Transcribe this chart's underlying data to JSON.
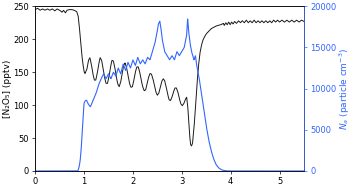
{
  "ylabel_left": "[N₂O₅] (pptv)",
  "ylabel_right": "$N_a$ (particle cm$^{-3}$)",
  "xlim": [
    0,
    5.5
  ],
  "ylim_left": [
    0,
    250
  ],
  "ylim_right": [
    0,
    20000
  ],
  "yticks_left": [
    0,
    50,
    100,
    150,
    200,
    250
  ],
  "yticks_right": [
    0,
    5000,
    10000,
    15000,
    20000
  ],
  "xticks": [
    0,
    1,
    2,
    3,
    4,
    5
  ],
  "line_black_color": "#1a1a1a",
  "line_blue_color": "#3366ff"
}
